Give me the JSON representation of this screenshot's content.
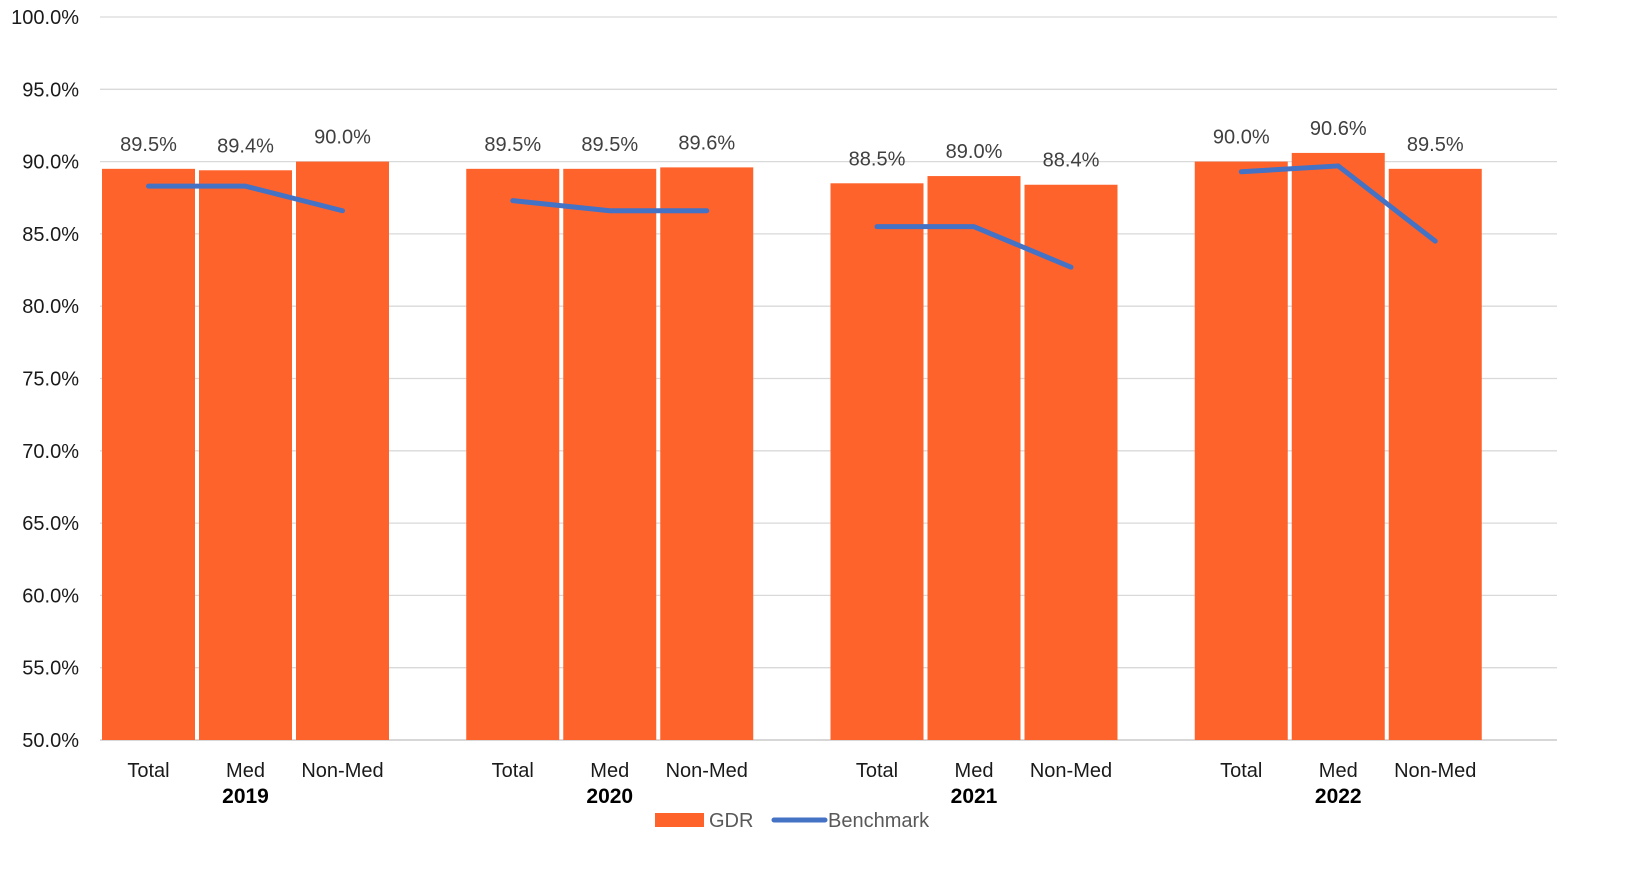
{
  "chart_data": {
    "type": "bar",
    "groups": [
      {
        "label": "2019",
        "categories": [
          "Total",
          "Med",
          "Non-Med"
        ]
      },
      {
        "label": "2020",
        "categories": [
          "Total",
          "Med",
          "Non-Med"
        ]
      },
      {
        "label": "2021",
        "categories": [
          "Total",
          "Med",
          "Non-Med"
        ]
      },
      {
        "label": "2022",
        "categories": [
          "Total",
          "Med",
          "Non-Med"
        ]
      }
    ],
    "series": [
      {
        "name": "GDR",
        "kind": "bar",
        "color": "#FF632C",
        "values": [
          89.5,
          89.4,
          90.0,
          89.5,
          89.5,
          89.6,
          88.5,
          89.0,
          88.4,
          90.0,
          90.6,
          89.5
        ],
        "labels": [
          "89.5%",
          "89.4%",
          "90.0%",
          "89.5%",
          "89.5%",
          "89.6%",
          "88.5%",
          "89.0%",
          "88.4%",
          "90.0%",
          "90.6%",
          "89.5%"
        ]
      },
      {
        "name": "Benchmark",
        "kind": "line",
        "color": "#4472C4",
        "values": [
          88.3,
          88.3,
          86.6,
          87.3,
          86.6,
          86.6,
          85.5,
          85.5,
          82.7,
          89.3,
          89.7,
          84.5
        ]
      }
    ],
    "ylim": [
      50,
      100
    ],
    "yticks": [
      "50.0%",
      "55.0%",
      "60.0%",
      "65.0%",
      "70.0%",
      "75.0%",
      "80.0%",
      "85.0%",
      "90.0%",
      "95.0%",
      "100.0%"
    ],
    "grid": true,
    "legend": "bottom",
    "title": "",
    "xlabel": "",
    "ylabel": ""
  }
}
